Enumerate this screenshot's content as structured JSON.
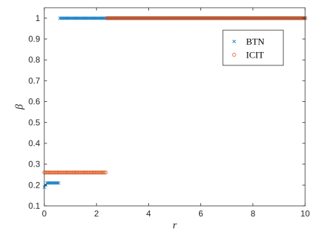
{
  "chart_data": {
    "type": "scatter",
    "xlabel": "r",
    "ylabel": "β",
    "xlim": [
      0,
      10
    ],
    "ylim": [
      0.1,
      1.05
    ],
    "x_ticks": [
      0,
      2,
      4,
      6,
      8,
      10
    ],
    "y_ticks": [
      0.1,
      0.2,
      0.3,
      0.4,
      0.5,
      0.6,
      0.7,
      0.8,
      0.9,
      1
    ],
    "grid": false,
    "legend_position": "top-right",
    "series": [
      {
        "name": "BTN",
        "marker": "x",
        "color": "#0072BD",
        "segments": [
          {
            "x_start": 0.0,
            "x_end": 0.0,
            "step": 0.05,
            "y": 0.19
          },
          {
            "x_start": 0.05,
            "x_end": 0.05,
            "step": 0.05,
            "y": 0.2
          },
          {
            "x_start": 0.1,
            "x_end": 0.55,
            "step": 0.05,
            "y": 0.21
          },
          {
            "x_start": 0.6,
            "x_end": 10.0,
            "step": 0.05,
            "y": 1.0
          }
        ]
      },
      {
        "name": "ICIT",
        "marker": "o",
        "color": "#D95319",
        "segments": [
          {
            "x_start": 0.0,
            "x_end": 2.35,
            "step": 0.05,
            "y": 0.26
          },
          {
            "x_start": 2.4,
            "x_end": 10.0,
            "step": 0.05,
            "y": 1.0
          }
        ]
      }
    ]
  }
}
